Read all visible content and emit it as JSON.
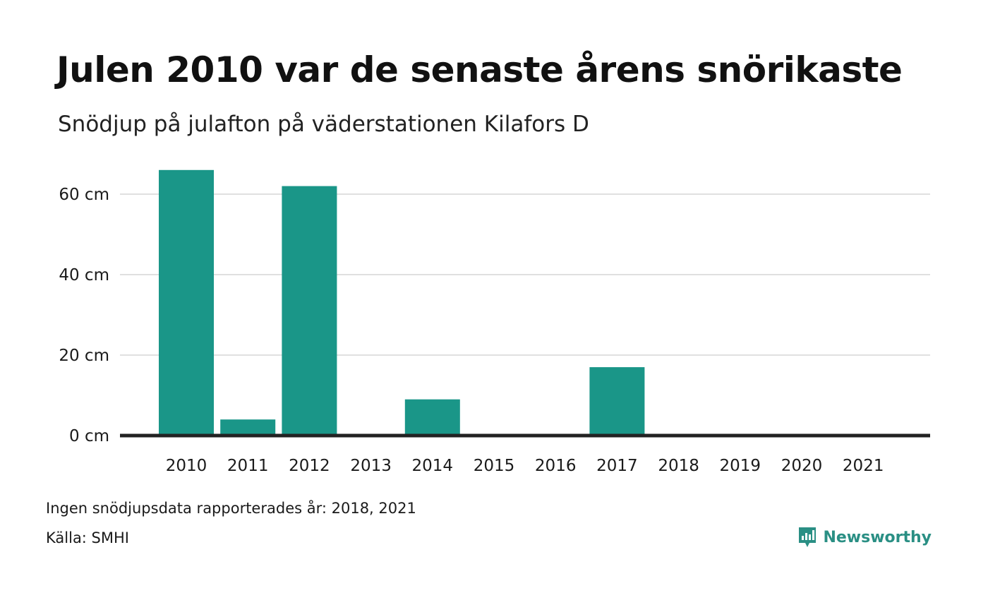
{
  "title": "Julen 2010 var de senaste årens snörikaste",
  "subtitle": "Snödjup på julafton på väderstationen Kilafors D",
  "note": "Ingen snödjupsdata rapporterades år: 2018, 2021",
  "source": "Källa: SMHI",
  "brand": {
    "name": "Newsworthy",
    "icon": "newsworthy-logo-icon",
    "color": "#2a8f84"
  },
  "chart_data": {
    "type": "bar",
    "categories": [
      "2010",
      "2011",
      "2012",
      "2013",
      "2014",
      "2015",
      "2016",
      "2017",
      "2018",
      "2019",
      "2020",
      "2021"
    ],
    "values": [
      66,
      4,
      62,
      0,
      9,
      0,
      0,
      17,
      null,
      0,
      0,
      null
    ],
    "ylim": [
      0,
      70
    ],
    "yticks": [
      0,
      20,
      40,
      60
    ],
    "ytick_labels": [
      "0 cm",
      "20 cm",
      "40 cm",
      "60 cm"
    ],
    "grid": true,
    "colors": {
      "bar": "#1a9688",
      "grid": "#e0e0e0",
      "baseline": "#222222"
    }
  }
}
